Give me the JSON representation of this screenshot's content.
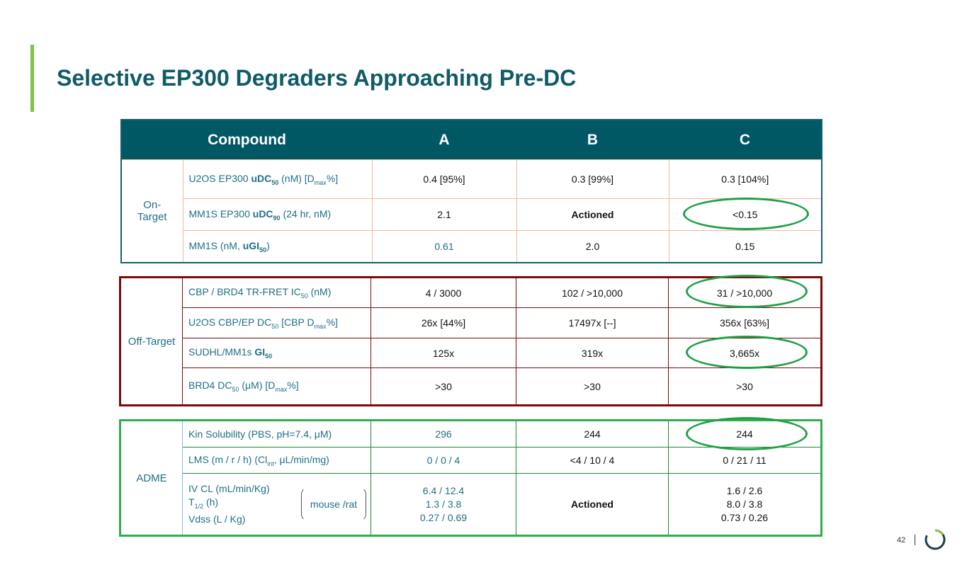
{
  "title": "Selective EP300 Degraders Approaching Pre-DC",
  "page_number": "42",
  "header": {
    "compound": "Compound",
    "a": "A",
    "b": "B",
    "c": "C"
  },
  "on_target": {
    "group": "On-Target",
    "rows": [
      {
        "metric_pre": "U2OS EP300 ",
        "metric_bold": "uDC",
        "metric_sub": "50",
        "metric_mid": " (nM) [D",
        "metric_sub2": "max",
        "metric_post": "%]",
        "a": "0.4 [95%]",
        "b": "0.3 [99%]",
        "c": "0.3 [104%]"
      },
      {
        "metric_pre": "MM1S EP300 ",
        "metric_bold": "uDC",
        "metric_sub": "90",
        "metric_post": " (24 hr, nM)",
        "a": "2.1",
        "b": "Actioned",
        "c": "<0.15"
      },
      {
        "metric_pre": "MM1S (nM, ",
        "metric_bold": "uGI",
        "metric_sub": "50",
        "metric_post": ")",
        "a": "0.61",
        "b": "2.0",
        "c": "0.15"
      }
    ]
  },
  "off_target": {
    "group": "Off-Target",
    "rows": [
      {
        "metric_pre": "CBP / BRD4 TR-FRET IC",
        "metric_sub": "50",
        "metric_post": " (nM)",
        "a": "4 / 3000",
        "b": "102 / >10,000",
        "c": "31 / >10,000"
      },
      {
        "metric_pre": "U2OS CBP/EP DC",
        "metric_sub": "50",
        "metric_mid": " [CBP D",
        "metric_sub2": "max",
        "metric_post": "%]",
        "a": "26x [44%]",
        "b": "17497x [--]",
        "c": "356x [63%]"
      },
      {
        "metric_pre": "SUDHL/MM1s ",
        "metric_bold": "GI",
        "metric_sub": "50",
        "a": "125x",
        "b": "319x",
        "c": "3,665x"
      },
      {
        "metric_pre": "BRD4 DC",
        "metric_sub": "50",
        "metric_mid": " (μM) [D",
        "metric_sub2": "max",
        "metric_post": "%]",
        "a": ">30",
        "b": ">30",
        "c": ">30"
      }
    ]
  },
  "adme": {
    "group": "ADME",
    "rows": [
      {
        "metric": "Kin Solubility (PBS, pH=7.4, μM)",
        "a": "296",
        "b": "244",
        "c": "244"
      },
      {
        "metric_pre": "LMS (m / r / h) (Cl",
        "metric_sub": "int",
        "metric_post": ", μL/min/mg)",
        "a": "0 / 0 / 4",
        "b": "<4 / 10 / 4",
        "c": "0 / 21 / 11"
      }
    ],
    "iv": {
      "line1": "IV CL (mL/min/Kg)",
      "line2_pre": "T",
      "line2_sub": "1/2",
      "line2_post": " (h)",
      "line3": "Vdss (L / Kg)",
      "bracket_label": "mouse /rat",
      "a": [
        "6.4  /  12.4",
        "1.3  /  3.8",
        "0.27  /  0.69"
      ],
      "b": "Actioned",
      "c": [
        "1.6  /  2.6",
        "8.0  /  3.8",
        "0.73  /  0.26"
      ]
    }
  },
  "colors": {
    "title": "#0f5b66",
    "header_bg": "#005865",
    "off_target_border": "#7d0a0a",
    "adme_border": "#2eaf4c",
    "highlight": "#1fa046",
    "accent_bar": "#7dc24b"
  }
}
